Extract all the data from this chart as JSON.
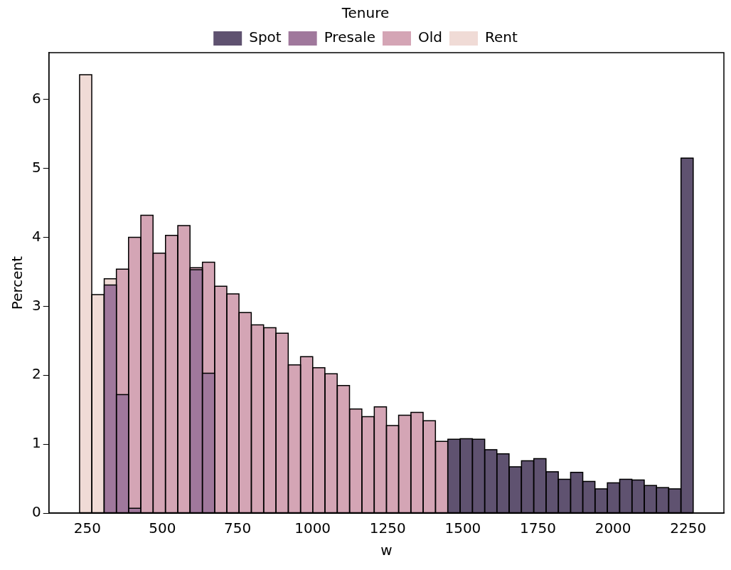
{
  "chart_data": {
    "type": "histogram",
    "xlabel": "w",
    "ylabel": "Percent",
    "legend_title": "Tenure",
    "legend": "top",
    "bins": [
      224,
      265,
      306,
      347,
      387,
      428,
      469,
      510,
      551,
      592,
      633,
      674,
      714,
      755,
      796,
      837,
      878,
      919,
      960,
      1000,
      1041,
      1082,
      1123,
      1164,
      1205,
      1246,
      1286,
      1327,
      1368,
      1409,
      1450,
      1491,
      1532,
      1573,
      1613,
      1654,
      1695,
      1736,
      1777,
      1818,
      1859,
      1899,
      1940,
      1981,
      2022,
      2063,
      2104,
      2145,
      2185,
      2226,
      2267
    ],
    "series": [
      {
        "name": "Spot",
        "color": "#5f5270",
        "values": [
          null,
          null,
          null,
          null,
          null,
          null,
          null,
          null,
          null,
          null,
          null,
          null,
          null,
          null,
          null,
          null,
          null,
          null,
          null,
          null,
          null,
          null,
          null,
          null,
          null,
          null,
          null,
          null,
          null,
          null,
          1.07,
          1.08,
          1.07,
          0.92,
          0.86,
          0.67,
          0.76,
          0.79,
          0.6,
          0.49,
          0.59,
          0.46,
          0.35,
          0.44,
          0.49,
          0.48,
          0.4,
          0.37,
          0.35,
          5.15
        ]
      },
      {
        "name": "Presale",
        "color": "#a0789c",
        "values": [
          null,
          null,
          3.31,
          1.72,
          0.07,
          null,
          null,
          null,
          null,
          3.53,
          2.03,
          null,
          null,
          null,
          null,
          null,
          null,
          null,
          null,
          null,
          null,
          null,
          null,
          null,
          null,
          null,
          null,
          null,
          null,
          null,
          null,
          null,
          null,
          null,
          null,
          null,
          null,
          null,
          null,
          null,
          null,
          null,
          null,
          null,
          null,
          null,
          null,
          null,
          null,
          null
        ]
      },
      {
        "name": "Old",
        "color": "#d4a5b5",
        "values": [
          null,
          null,
          null,
          3.54,
          4.0,
          4.32,
          3.77,
          4.03,
          4.17,
          3.56,
          3.64,
          3.29,
          3.18,
          2.91,
          2.73,
          2.69,
          2.61,
          2.15,
          2.27,
          2.11,
          2.02,
          1.85,
          1.51,
          1.4,
          1.54,
          1.27,
          1.42,
          1.46,
          1.34,
          1.04,
          null,
          null,
          null,
          null,
          null,
          null,
          null,
          null,
          null,
          null,
          null,
          null,
          null,
          null,
          null,
          null,
          null,
          null,
          null,
          null
        ]
      },
      {
        "name": "Rent",
        "color": "#f0dbd6",
        "values": [
          6.36,
          3.17,
          3.4,
          null,
          null,
          null,
          null,
          null,
          null,
          null,
          null,
          null,
          null,
          null,
          null,
          null,
          null,
          null,
          null,
          null,
          null,
          null,
          null,
          null,
          null,
          null,
          null,
          null,
          null,
          null,
          null,
          null,
          null,
          null,
          null,
          null,
          null,
          null,
          null,
          null,
          null,
          null,
          null,
          null,
          null,
          null,
          null,
          null,
          null,
          null
        ]
      }
    ],
    "xlim": [
      122,
      2369
    ],
    "ylim": [
      0,
      6.68
    ],
    "xticks": [
      250,
      500,
      750,
      1000,
      1250,
      1500,
      1750,
      2000,
      2250
    ],
    "yticks": [
      0,
      1,
      2,
      3,
      4,
      5,
      6
    ]
  }
}
